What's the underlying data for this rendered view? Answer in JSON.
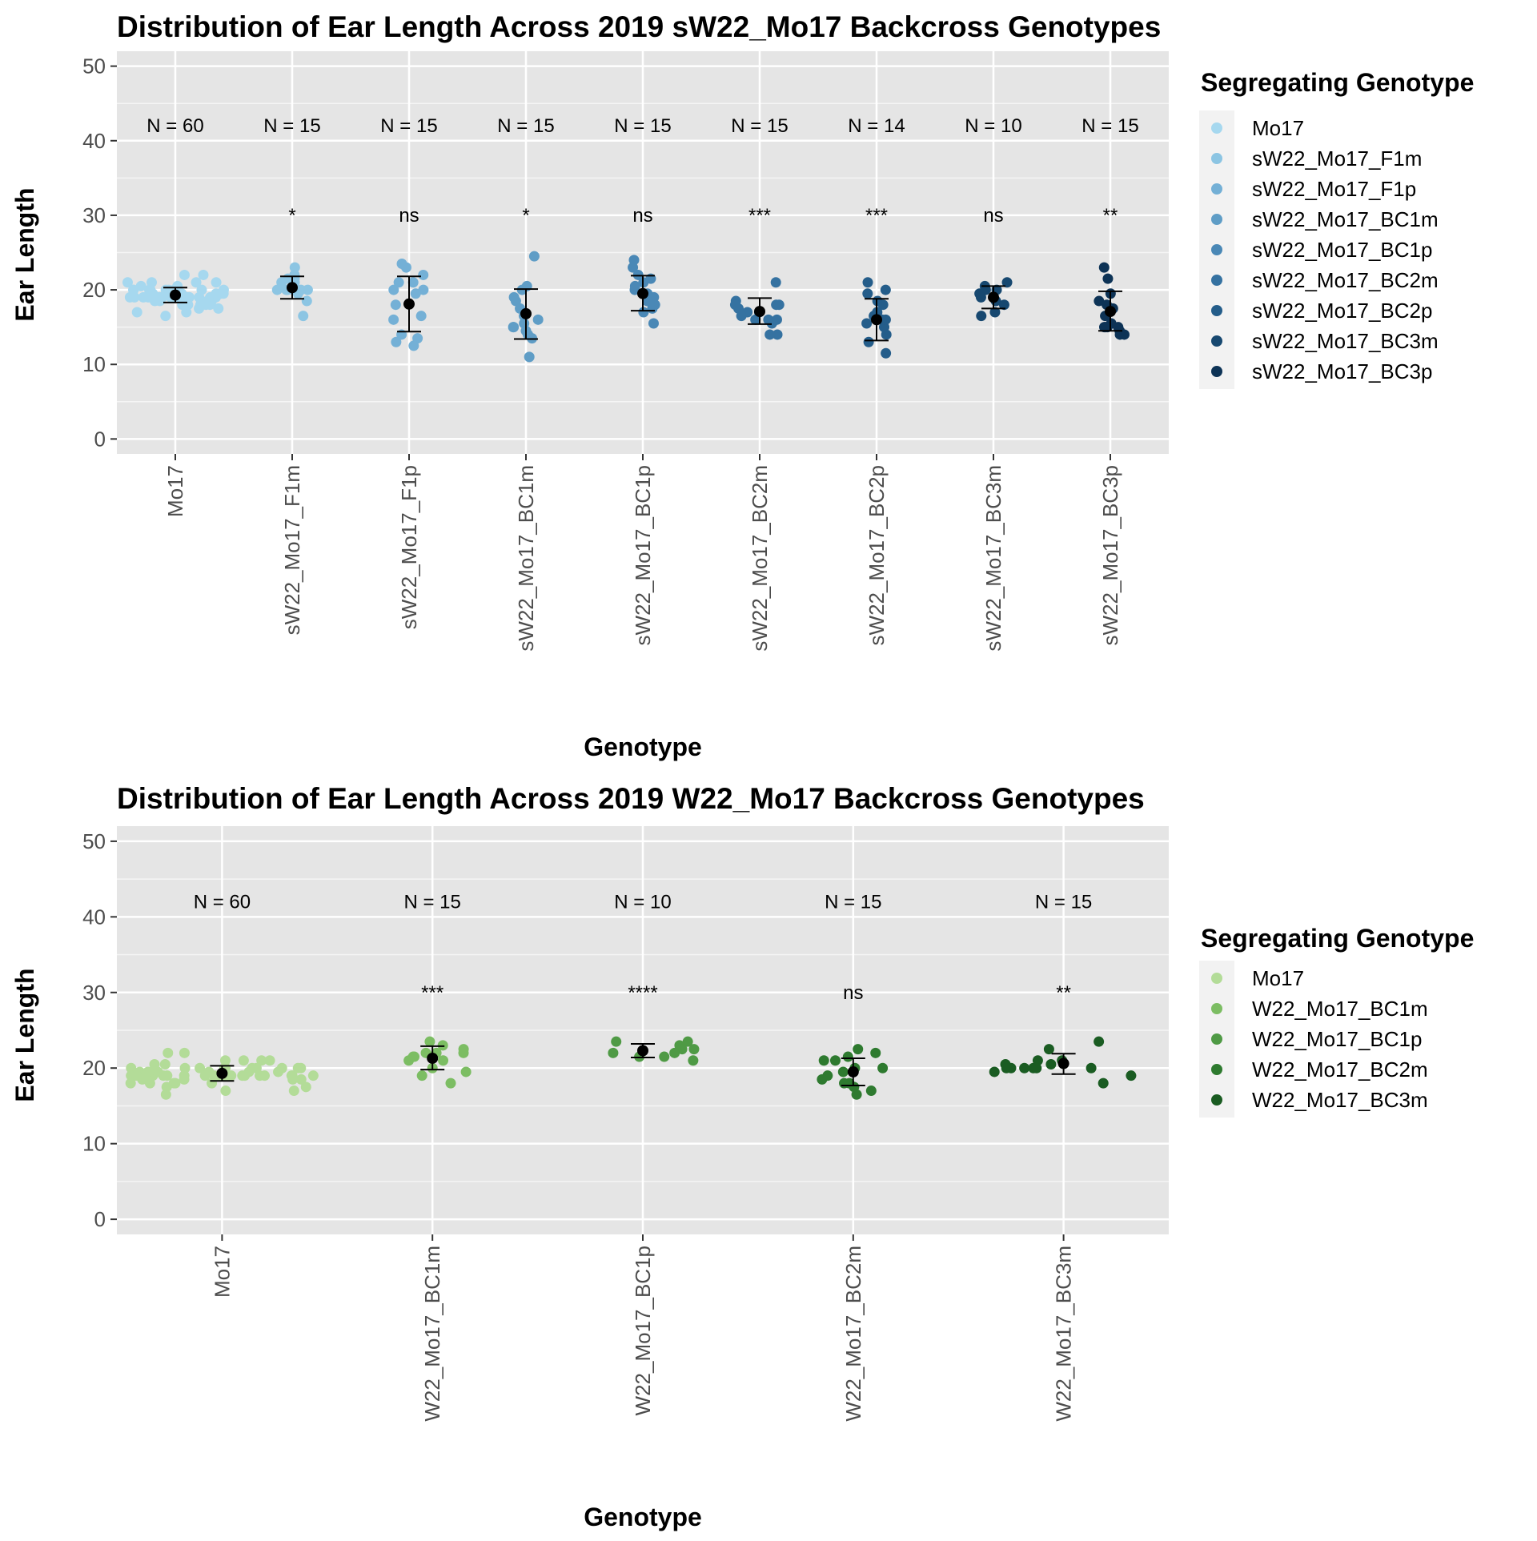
{
  "chart_data": [
    {
      "type": "scatter",
      "title": "Distribution of Ear Length Across 2019 sW22_Mo17 Backcross Genotypes",
      "xlabel": "Genotype",
      "ylabel": "Ear Length",
      "ylim": [
        -2,
        52
      ],
      "yticks": [
        0,
        10,
        20,
        30,
        40,
        50
      ],
      "grid": true,
      "legend": {
        "title": "Segregating Genotype",
        "position": "right",
        "entries": [
          {
            "label": "Mo17",
            "color": "#a6d8ef"
          },
          {
            "label": "sW22_Mo17_F1m",
            "color": "#8cc5e3"
          },
          {
            "label": "sW22_Mo17_F1p",
            "color": "#74b0d6"
          },
          {
            "label": "sW22_Mo17_BC1m",
            "color": "#5f9dc6"
          },
          {
            "label": "sW22_Mo17_BC1p",
            "color": "#4a88b6"
          },
          {
            "label": "sW22_Mo17_BC2m",
            "color": "#3572a1"
          },
          {
            "label": "sW22_Mo17_BC2p",
            "color": "#245d8a"
          },
          {
            "label": "sW22_Mo17_BC3m",
            "color": "#174870"
          },
          {
            "label": "sW22_Mo17_BC3p",
            "color": "#0d3356"
          }
        ]
      },
      "groups": [
        {
          "category": "Mo17",
          "color": "#a6d8ef",
          "n_label": "N = 60",
          "sig": "",
          "mean": 19.3,
          "lower": 18.3,
          "upper": 20.3,
          "points": [
            19,
            19,
            19,
            19.5,
            18.5,
            18,
            19.5,
            20,
            20.5,
            21,
            22,
            17,
            16.5,
            18,
            19,
            19.5,
            20,
            20,
            21,
            18.5,
            19,
            19,
            18,
            17.5,
            19,
            20,
            20.5,
            21,
            19,
            18.5,
            19.5,
            19,
            20,
            18,
            17,
            19,
            19.5,
            20,
            21,
            22,
            18.5,
            19,
            20,
            19,
            18,
            17.5,
            19,
            20,
            19.5,
            19,
            19,
            19,
            20,
            20,
            19.5,
            18.5,
            19,
            19,
            19,
            19
          ]
        },
        {
          "category": "sW22_Mo17_F1m",
          "color": "#8cc5e3",
          "n_label": "N = 15",
          "sig": "*",
          "mean": 20.3,
          "lower": 18.8,
          "upper": 21.8,
          "points": [
            20,
            20,
            20,
            20,
            20,
            21,
            22,
            23,
            21.5,
            21.5,
            18.5,
            16.5,
            21,
            20,
            19.5
          ]
        },
        {
          "category": "sW22_Mo17_F1p",
          "color": "#74b0d6",
          "n_label": "N = 15",
          "sig": "ns",
          "mean": 18.1,
          "lower": 14.4,
          "upper": 21.8,
          "points": [
            23,
            23.5,
            22,
            21,
            20,
            19.5,
            18,
            16.5,
            16,
            14,
            13.5,
            12.5,
            13,
            20,
            21
          ]
        },
        {
          "category": "sW22_Mo17_BC1m",
          "color": "#5f9dc6",
          "n_label": "N = 15",
          "sig": "*",
          "mean": 16.8,
          "lower": 13.4,
          "upper": 20.1,
          "points": [
            24.5,
            20.5,
            19,
            18.5,
            17.5,
            16,
            15.5,
            15,
            14.5,
            14,
            13.5,
            11,
            15,
            16.5,
            20
          ]
        },
        {
          "category": "sW22_Mo17_BC1p",
          "color": "#4a88b6",
          "n_label": "N = 15",
          "sig": "ns",
          "mean": 19.5,
          "lower": 17.2,
          "upper": 21.9,
          "points": [
            24,
            23,
            21.5,
            20.5,
            20,
            19.5,
            19,
            18.5,
            18,
            17.5,
            17,
            15.5,
            21,
            22,
            18.5
          ]
        },
        {
          "category": "sW22_Mo17_BC2m",
          "color": "#3572a1",
          "n_label": "N = 15",
          "sig": "***",
          "mean": 17.1,
          "lower": 15.4,
          "upper": 18.9,
          "points": [
            21,
            18.5,
            18,
            18,
            17.5,
            17,
            16.5,
            16,
            16,
            15.5,
            14,
            14,
            18,
            17,
            16
          ]
        },
        {
          "category": "sW22_Mo17_BC2p",
          "color": "#245d8a",
          "n_label": "N = 14",
          "sig": "***",
          "mean": 16.0,
          "lower": 13.2,
          "upper": 18.8,
          "points": [
            21,
            20,
            18.5,
            18,
            16.5,
            16,
            15.5,
            15,
            14,
            13,
            11.5,
            19.5,
            17,
            16
          ]
        },
        {
          "category": "sW22_Mo17_BC3m",
          "color": "#174870",
          "n_label": "N = 10",
          "sig": "ns",
          "mean": 19.0,
          "lower": 17.5,
          "upper": 20.5,
          "points": [
            21,
            20.5,
            20,
            19.5,
            19,
            18.5,
            18,
            17,
            16.5,
            20
          ]
        },
        {
          "category": "sW22_Mo17_BC3p",
          "color": "#0d3356",
          "n_label": "N = 15",
          "sig": "**",
          "mean": 17.1,
          "lower": 14.5,
          "upper": 19.8,
          "points": [
            23,
            21.5,
            19.5,
            18.5,
            17.5,
            16.5,
            15.5,
            15,
            15,
            15,
            15,
            14.5,
            14,
            14,
            18
          ]
        }
      ]
    },
    {
      "type": "scatter",
      "title": "Distribution of Ear Length Across 2019 W22_Mo17 Backcross Genotypes",
      "xlabel": "Genotype",
      "ylabel": "Ear Length",
      "ylim": [
        -2,
        52
      ],
      "yticks": [
        0,
        10,
        20,
        30,
        40,
        50
      ],
      "grid": true,
      "legend": {
        "title": "Segregating Genotype",
        "position": "right",
        "entries": [
          {
            "label": "Mo17",
            "color": "#b3dc98"
          },
          {
            "label": "W22_Mo17_BC1m",
            "color": "#7cbd63"
          },
          {
            "label": "W22_Mo17_BC1p",
            "color": "#4f9a45"
          },
          {
            "label": "W22_Mo17_BC2m",
            "color": "#2e7a2f"
          },
          {
            "label": "W22_Mo17_BC3m",
            "color": "#1a5c22"
          }
        ]
      },
      "groups": [
        {
          "category": "Mo17",
          "color": "#b3dc98",
          "n_label": "N = 60",
          "sig": "",
          "mean": 19.3,
          "lower": 18.3,
          "upper": 20.3,
          "points": [
            19,
            19,
            19,
            19.5,
            18.5,
            18,
            19.5,
            20,
            20.5,
            21,
            22,
            17,
            16.5,
            18,
            19,
            19.5,
            20,
            20,
            21,
            18.5,
            19,
            19,
            18,
            17.5,
            19,
            20,
            20.5,
            21,
            19,
            18.5,
            19.5,
            19,
            20,
            18,
            17,
            19,
            19.5,
            20,
            21,
            22,
            18.5,
            19,
            20,
            19,
            18,
            17.5,
            19,
            20,
            19.5,
            19,
            19,
            19,
            20,
            20,
            19.5,
            18.5,
            19,
            19,
            19,
            19
          ]
        },
        {
          "category": "W22_Mo17_BC1m",
          "color": "#7cbd63",
          "n_label": "N = 15",
          "sig": "***",
          "mean": 21.3,
          "lower": 19.8,
          "upper": 22.9,
          "points": [
            23.5,
            23,
            22.5,
            22,
            22,
            21.5,
            21.5,
            21,
            21,
            20,
            19.5,
            19,
            18,
            22,
            21.5
          ]
        },
        {
          "category": "W22_Mo17_BC1p",
          "color": "#4f9a45",
          "n_label": "N = 10",
          "sig": "****",
          "mean": 22.3,
          "lower": 21.4,
          "upper": 23.2,
          "points": [
            23.5,
            23.5,
            23,
            22.5,
            22.5,
            22,
            21.5,
            21.5,
            21,
            22
          ]
        },
        {
          "category": "W22_Mo17_BC2m",
          "color": "#2e7a2f",
          "n_label": "N = 15",
          "sig": "ns",
          "mean": 19.5,
          "lower": 17.7,
          "upper": 21.3,
          "points": [
            22.5,
            22,
            21.5,
            21,
            20,
            20,
            19.5,
            19,
            18.5,
            18,
            18,
            17.5,
            17,
            16.5,
            21
          ]
        },
        {
          "category": "W22_Mo17_BC3m",
          "color": "#1a5c22",
          "n_label": "N = 15",
          "sig": "**",
          "mean": 20.6,
          "lower": 19.2,
          "upper": 21.9,
          "points": [
            23.5,
            22.5,
            21,
            20.5,
            20.5,
            20,
            20,
            20,
            20,
            20,
            19.5,
            19,
            18,
            21,
            20
          ]
        }
      ]
    }
  ]
}
